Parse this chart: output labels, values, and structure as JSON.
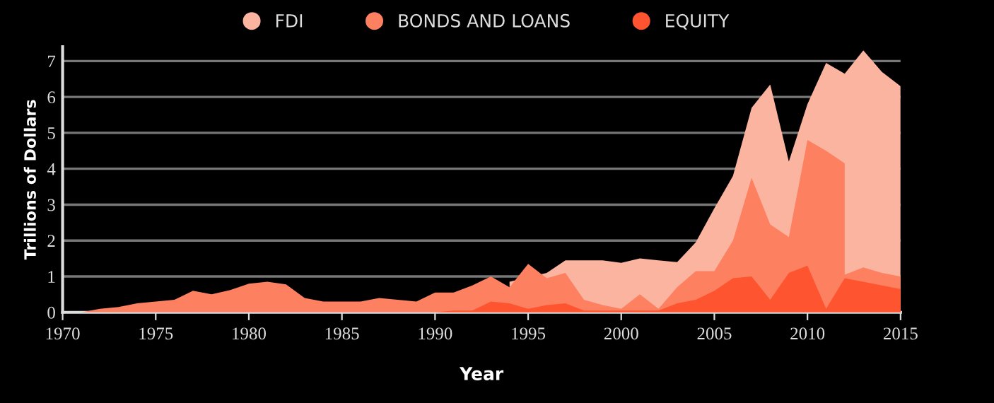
{
  "chart_data": {
    "type": "area",
    "xlabel": "Year",
    "ylabel": "Trillions of Dollars",
    "xlim": [
      1970,
      2015
    ],
    "xticks": [
      1970,
      1975,
      1980,
      1985,
      1990,
      1995,
      2000,
      2005,
      2010,
      2015
    ],
    "ylim": [
      0,
      7.4
    ],
    "yticks": [
      0,
      1,
      2,
      3,
      4,
      5,
      6,
      7
    ],
    "grid": "y",
    "legend": "top",
    "series": [
      {
        "name": "FDI",
        "color": "#fbb4a0",
        "x": [
          1994,
          1995,
          1996,
          1997,
          1998,
          1999,
          2000,
          2001,
          2002,
          2003,
          2004,
          2005,
          2006,
          2007,
          2008,
          2009,
          2010,
          2011,
          2012,
          2013,
          2014,
          2015
        ],
        "values": [
          0.85,
          null,
          1.1,
          1.45,
          1.45,
          1.45,
          1.38,
          1.5,
          1.45,
          1.4,
          1.95,
          2.9,
          3.8,
          5.7,
          6.35,
          4.2,
          5.8,
          6.95,
          6.65,
          7.3,
          6.7,
          6.3
        ]
      },
      {
        "name": "BONDS AND LOANS",
        "color": "#fd8060",
        "x": [
          1970,
          1971,
          1972,
          1973,
          1974,
          1975,
          1976,
          1977,
          1978,
          1979,
          1980,
          1981,
          1982,
          1983,
          1984,
          1985,
          1986,
          1987,
          1988,
          1989,
          1990,
          1991,
          1992,
          1993,
          1994,
          1995,
          1996,
          1997,
          1998,
          1999,
          2000,
          2001,
          2002,
          2003,
          2004,
          2005,
          2006,
          2007,
          2008,
          2009,
          2010,
          2011,
          2012,
          2012,
          2013,
          2014,
          2015
        ],
        "values": [
          0,
          0,
          0.1,
          0.15,
          0.25,
          0.3,
          0.35,
          0.6,
          0.5,
          0.62,
          0.8,
          0.85,
          0.78,
          0.4,
          0.3,
          0.3,
          0.3,
          0.4,
          0.35,
          0.3,
          0.55,
          0.55,
          0.75,
          1.0,
          0.7,
          1.35,
          0.95,
          1.1,
          0.35,
          0.2,
          0.1,
          0.5,
          0.1,
          0.7,
          1.15,
          1.15,
          2.0,
          3.75,
          2.45,
          2.1,
          4.8,
          4.5,
          4.15,
          1.05,
          1.25,
          1.1,
          1.0
        ]
      },
      {
        "name": "EQUITY",
        "color": "#fe5530",
        "x": [
          1990,
          1991,
          1992,
          1993,
          1994,
          1995,
          1996,
          1997,
          1998,
          1999,
          2000,
          2001,
          2002,
          2003,
          2004,
          2005,
          2006,
          2007,
          2008,
          2009,
          2010,
          2011,
          2012,
          2013,
          2014,
          2015
        ],
        "values": [
          0,
          0.05,
          0.05,
          0.3,
          0.25,
          0.1,
          0.2,
          0.25,
          0.05,
          0.05,
          0.05,
          0.05,
          0.05,
          0.25,
          0.35,
          0.6,
          0.95,
          1.0,
          0.35,
          1.1,
          1.3,
          0.1,
          0.95,
          0.85,
          0.75,
          0.65
        ]
      }
    ]
  }
}
